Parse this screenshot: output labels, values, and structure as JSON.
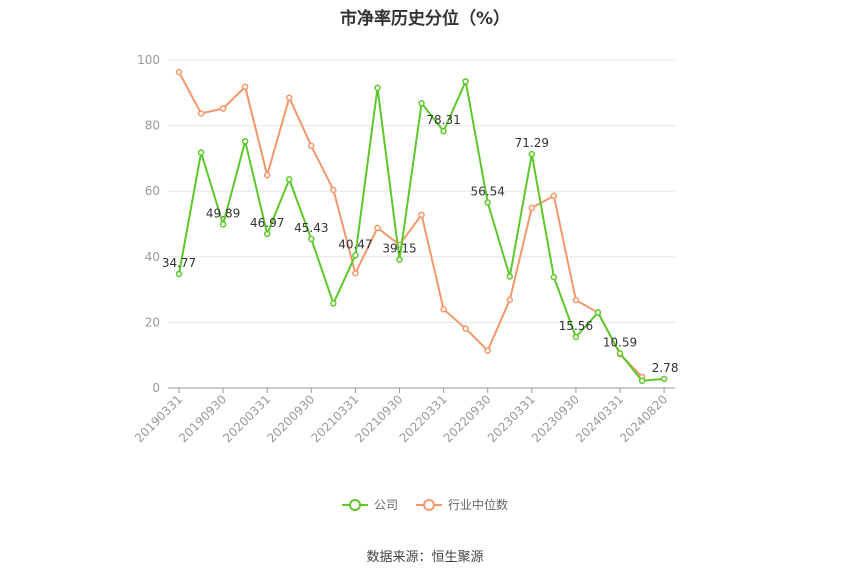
{
  "chart_data": {
    "type": "line",
    "title": "市净率历史分位（%）",
    "ylim": [
      0,
      100
    ],
    "yticks": [
      0,
      20,
      40,
      60,
      80,
      100
    ],
    "x_tick_labels": [
      "20190331",
      "20190930",
      "20200331",
      "20200930",
      "20210331",
      "20210930",
      "20220331",
      "20220930",
      "20230331",
      "20230930",
      "20240331",
      "20240820"
    ],
    "grid": true,
    "legend_position": "bottom",
    "series": [
      {
        "name": "公司",
        "color": "#5cc82a",
        "values": [
          34.77,
          71.8,
          49.89,
          75.2,
          46.97,
          63.6,
          45.43,
          25.8,
          40.47,
          91.5,
          39.15,
          86.8,
          78.31,
          93.5,
          56.54,
          34.0,
          71.29,
          33.8,
          15.56,
          23.0,
          10.59,
          2.2,
          2.78
        ],
        "labels": [
          "34.77",
          "",
          "49.89",
          "",
          "46.97",
          "",
          "45.43",
          "",
          "40.47",
          "",
          "39.15",
          "",
          "78.31",
          "",
          "56.54",
          "",
          "71.29",
          "",
          "15.56",
          "",
          "10.59",
          "",
          "2.78"
        ]
      },
      {
        "name": "行业中位数",
        "color": "#f4976c",
        "values": [
          96.3,
          83.7,
          85.2,
          91.8,
          64.9,
          88.5,
          73.8,
          60.4,
          35.0,
          48.8,
          43.7,
          52.8,
          24.0,
          18.1,
          11.4,
          26.9,
          54.9,
          58.6,
          26.8,
          23.0,
          10.3,
          3.4,
          null
        ]
      }
    ]
  },
  "source_text": "数据来源：恒生聚源"
}
